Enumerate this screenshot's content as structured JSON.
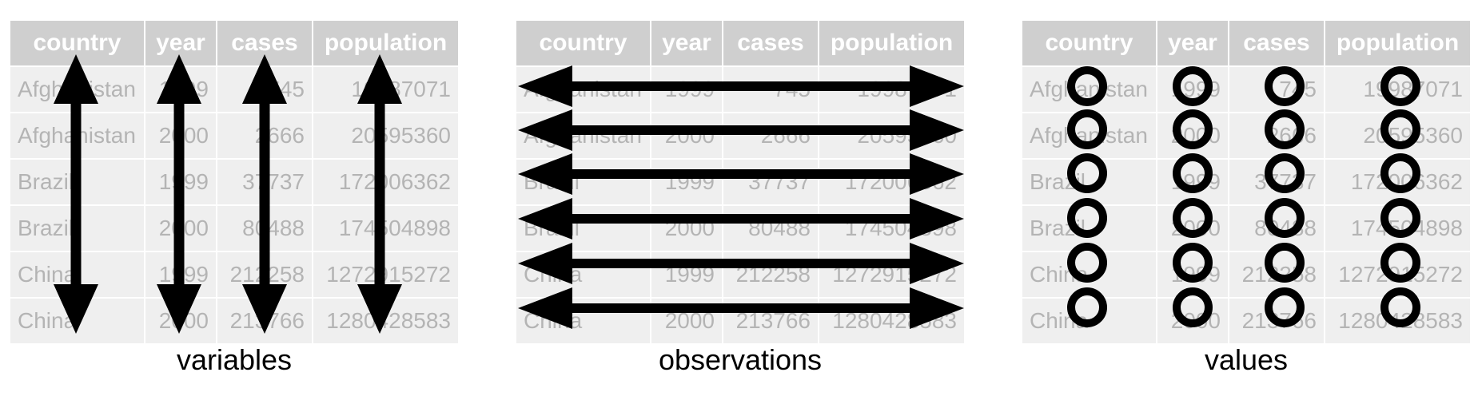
{
  "headers": [
    "country",
    "year",
    "cases",
    "population"
  ],
  "rows": [
    [
      "Afghanistan",
      "1999",
      "745",
      "19987071"
    ],
    [
      "Afghanistan",
      "2000",
      "2666",
      "20595360"
    ],
    [
      "Brazil",
      "1999",
      "37737",
      "172006362"
    ],
    [
      "Brazil",
      "2000",
      "80488",
      "174504898"
    ],
    [
      "China",
      "1999",
      "212258",
      "1272915272"
    ],
    [
      "China",
      "2000",
      "213766",
      "1280428583"
    ]
  ],
  "panels": [
    {
      "caption": "variables",
      "marker": "vertical-double-arrow"
    },
    {
      "caption": "observations",
      "marker": "horizontal-double-arrow"
    },
    {
      "caption": "values",
      "marker": "circle"
    }
  ],
  "colors": {
    "header_bg": "#cfcfcf",
    "header_text": "#ffffff",
    "cell_bg": "#efefef",
    "cell_text": "#b4b4b4",
    "marker": "#000000"
  }
}
